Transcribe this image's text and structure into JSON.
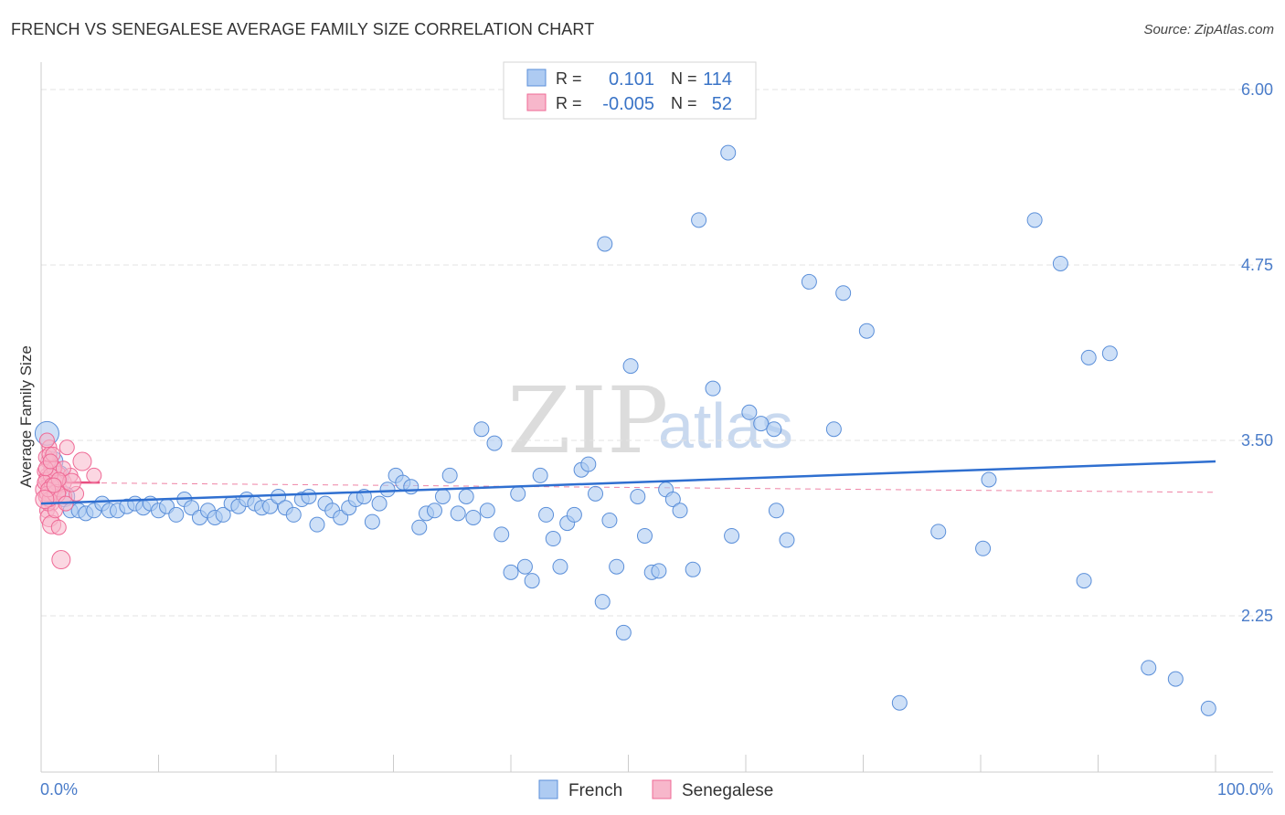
{
  "title": "FRENCH VS SENEGALESE AVERAGE FAMILY SIZE CORRELATION CHART",
  "source": "Source: ZipAtlas.com",
  "watermark": {
    "part1": "ZIP",
    "part2": "atlas"
  },
  "legend": {
    "rows": [
      {
        "r_label": "R =",
        "r_value": "0.101",
        "n_label": "N =",
        "n_value": "114",
        "color": "#5b8fd9"
      },
      {
        "r_label": "R =",
        "r_value": "-0.005",
        "n_label": "N =",
        "n_value": "52",
        "color": "#ef6a96"
      }
    ]
  },
  "bottom_legend": {
    "french": "French",
    "senegalese": "Senegalese"
  },
  "colors": {
    "french_fill": "#aecbf2",
    "french_stroke": "#5b8fd9",
    "french_line": "#2f6fd0",
    "senegalese_fill": "#f7b7cb",
    "senegalese_stroke": "#ef6a96",
    "senegalese_line": "#e84f80",
    "tick_color": "#4a7cc9",
    "grid": "#e3e3e3"
  },
  "chart_data": {
    "type": "scatter",
    "title": "FRENCH VS SENEGALESE AVERAGE FAMILY SIZE CORRELATION CHART",
    "xlabel": "",
    "ylabel": "Average Family Size",
    "xlim": [
      0,
      100
    ],
    "ylim": [
      1.0,
      6.2
    ],
    "x_tick_labels": [
      "0.0%",
      "100.0%"
    ],
    "y_ticks": [
      2.25,
      3.5,
      4.75,
      6.0
    ],
    "y_tick_labels": [
      "2.25",
      "3.50",
      "4.75",
      "6.00"
    ],
    "grid": true,
    "legend_position": "top-center",
    "series": [
      {
        "name": "French",
        "r": 0.101,
        "n": 114,
        "trend": {
          "x": [
            0,
            100
          ],
          "y": [
            3.05,
            3.35
          ]
        },
        "points": [
          [
            0.5,
            3.55
          ],
          [
            1.0,
            3.35
          ],
          [
            1.5,
            3.25
          ],
          [
            2.0,
            3.1
          ],
          [
            2.5,
            3.0
          ],
          [
            3.2,
            3.0
          ],
          [
            3.8,
            2.98
          ],
          [
            4.5,
            3.0
          ],
          [
            5.2,
            3.05
          ],
          [
            5.8,
            3.0
          ],
          [
            6.5,
            3.0
          ],
          [
            7.3,
            3.03
          ],
          [
            8.0,
            3.05
          ],
          [
            8.7,
            3.02
          ],
          [
            9.3,
            3.05
          ],
          [
            10.0,
            3.0
          ],
          [
            10.7,
            3.03
          ],
          [
            11.5,
            2.97
          ],
          [
            12.2,
            3.08
          ],
          [
            12.8,
            3.02
          ],
          [
            13.5,
            2.95
          ],
          [
            14.2,
            3.0
          ],
          [
            14.8,
            2.95
          ],
          [
            15.5,
            2.97
          ],
          [
            16.2,
            3.05
          ],
          [
            16.8,
            3.03
          ],
          [
            17.5,
            3.08
          ],
          [
            18.2,
            3.05
          ],
          [
            18.8,
            3.02
          ],
          [
            19.5,
            3.03
          ],
          [
            20.2,
            3.1
          ],
          [
            20.8,
            3.02
          ],
          [
            21.5,
            2.97
          ],
          [
            22.2,
            3.08
          ],
          [
            22.8,
            3.1
          ],
          [
            23.5,
            2.9
          ],
          [
            24.2,
            3.05
          ],
          [
            24.8,
            3.0
          ],
          [
            25.5,
            2.95
          ],
          [
            26.2,
            3.02
          ],
          [
            26.8,
            3.08
          ],
          [
            27.5,
            3.1
          ],
          [
            28.2,
            2.92
          ],
          [
            28.8,
            3.05
          ],
          [
            29.5,
            3.15
          ],
          [
            30.2,
            3.25
          ],
          [
            30.8,
            3.2
          ],
          [
            31.5,
            3.17
          ],
          [
            32.2,
            2.88
          ],
          [
            32.8,
            2.98
          ],
          [
            33.5,
            3.0
          ],
          [
            34.2,
            3.1
          ],
          [
            34.8,
            3.25
          ],
          [
            35.5,
            2.98
          ],
          [
            36.2,
            3.1
          ],
          [
            36.8,
            2.95
          ],
          [
            37.5,
            3.58
          ],
          [
            38.0,
            3.0
          ],
          [
            38.6,
            3.48
          ],
          [
            39.2,
            2.83
          ],
          [
            40.0,
            2.56
          ],
          [
            40.6,
            3.12
          ],
          [
            41.2,
            2.6
          ],
          [
            41.8,
            2.5
          ],
          [
            42.5,
            3.25
          ],
          [
            43.0,
            2.97
          ],
          [
            43.6,
            2.8
          ],
          [
            44.2,
            2.6
          ],
          [
            44.8,
            2.91
          ],
          [
            45.4,
            2.97
          ],
          [
            46.0,
            3.29
          ],
          [
            46.6,
            3.33
          ],
          [
            47.2,
            3.12
          ],
          [
            47.8,
            2.35
          ],
          [
            48.4,
            2.93
          ],
          [
            49.0,
            2.6
          ],
          [
            49.6,
            2.13
          ],
          [
            50.2,
            4.03
          ],
          [
            50.8,
            3.1
          ],
          [
            51.4,
            2.82
          ],
          [
            52.0,
            2.56
          ],
          [
            52.6,
            2.57
          ],
          [
            53.2,
            3.15
          ],
          [
            53.8,
            3.08
          ],
          [
            54.4,
            3.0
          ],
          [
            58.5,
            5.55
          ],
          [
            48.0,
            4.9
          ],
          [
            56.0,
            5.07
          ],
          [
            57.2,
            3.87
          ],
          [
            60.3,
            3.7
          ],
          [
            61.3,
            3.62
          ],
          [
            62.4,
            3.58
          ],
          [
            63.5,
            2.79
          ],
          [
            65.4,
            4.63
          ],
          [
            67.5,
            3.58
          ],
          [
            68.3,
            4.55
          ],
          [
            70.3,
            4.28
          ],
          [
            62.6,
            3.0
          ],
          [
            73.1,
            1.63
          ],
          [
            76.4,
            2.85
          ],
          [
            80.2,
            2.73
          ],
          [
            80.7,
            3.22
          ],
          [
            84.6,
            5.07
          ],
          [
            86.8,
            4.76
          ],
          [
            88.8,
            2.5
          ],
          [
            89.2,
            4.09
          ],
          [
            91.0,
            4.12
          ],
          [
            94.3,
            1.88
          ],
          [
            96.6,
            1.8
          ],
          [
            99.4,
            1.59
          ],
          [
            55.5,
            2.58
          ],
          [
            58.8,
            2.82
          ]
        ]
      },
      {
        "name": "Senegalese",
        "r": -0.005,
        "n": 52,
        "trend": {
          "x": [
            0,
            100
          ],
          "y": [
            3.2,
            3.13
          ]
        },
        "points": [
          [
            0.3,
            3.15
          ],
          [
            0.5,
            3.25
          ],
          [
            0.7,
            3.45
          ],
          [
            0.4,
            3.1
          ],
          [
            0.8,
            3.2
          ],
          [
            1.0,
            3.3
          ],
          [
            0.6,
            3.35
          ],
          [
            0.9,
            3.05
          ],
          [
            1.2,
            3.15
          ],
          [
            0.5,
            3.0
          ],
          [
            0.7,
            2.95
          ],
          [
            1.1,
            3.22
          ],
          [
            0.3,
            3.28
          ],
          [
            0.6,
            3.18
          ],
          [
            0.8,
            3.12
          ],
          [
            1.4,
            3.25
          ],
          [
            0.4,
            3.38
          ],
          [
            1.0,
            3.1
          ],
          [
            1.3,
            3.2
          ],
          [
            0.5,
            3.5
          ],
          [
            0.9,
            2.9
          ],
          [
            1.6,
            3.15
          ],
          [
            0.7,
            3.4
          ],
          [
            0.4,
            3.22
          ],
          [
            1.1,
            3.3
          ],
          [
            1.8,
            3.2
          ],
          [
            2.0,
            3.1
          ],
          [
            0.6,
            3.05
          ],
          [
            0.8,
            3.25
          ],
          [
            1.5,
            2.88
          ],
          [
            1.7,
            2.65
          ],
          [
            0.3,
            3.2
          ],
          [
            2.2,
            3.45
          ],
          [
            2.5,
            3.25
          ],
          [
            3.0,
            3.12
          ],
          [
            3.5,
            3.35
          ],
          [
            4.5,
            3.25
          ],
          [
            0.9,
            3.18
          ],
          [
            1.2,
            3.0
          ],
          [
            0.5,
            3.12
          ],
          [
            2.6,
            3.2
          ],
          [
            1.9,
            3.3
          ],
          [
            0.4,
            3.3
          ],
          [
            0.7,
            3.08
          ],
          [
            1.0,
            3.4
          ],
          [
            1.3,
            3.12
          ],
          [
            0.6,
            3.15
          ],
          [
            2.1,
            3.05
          ],
          [
            0.8,
            3.35
          ],
          [
            1.5,
            3.22
          ],
          [
            0.3,
            3.08
          ],
          [
            1.1,
            3.18
          ]
        ]
      }
    ]
  }
}
